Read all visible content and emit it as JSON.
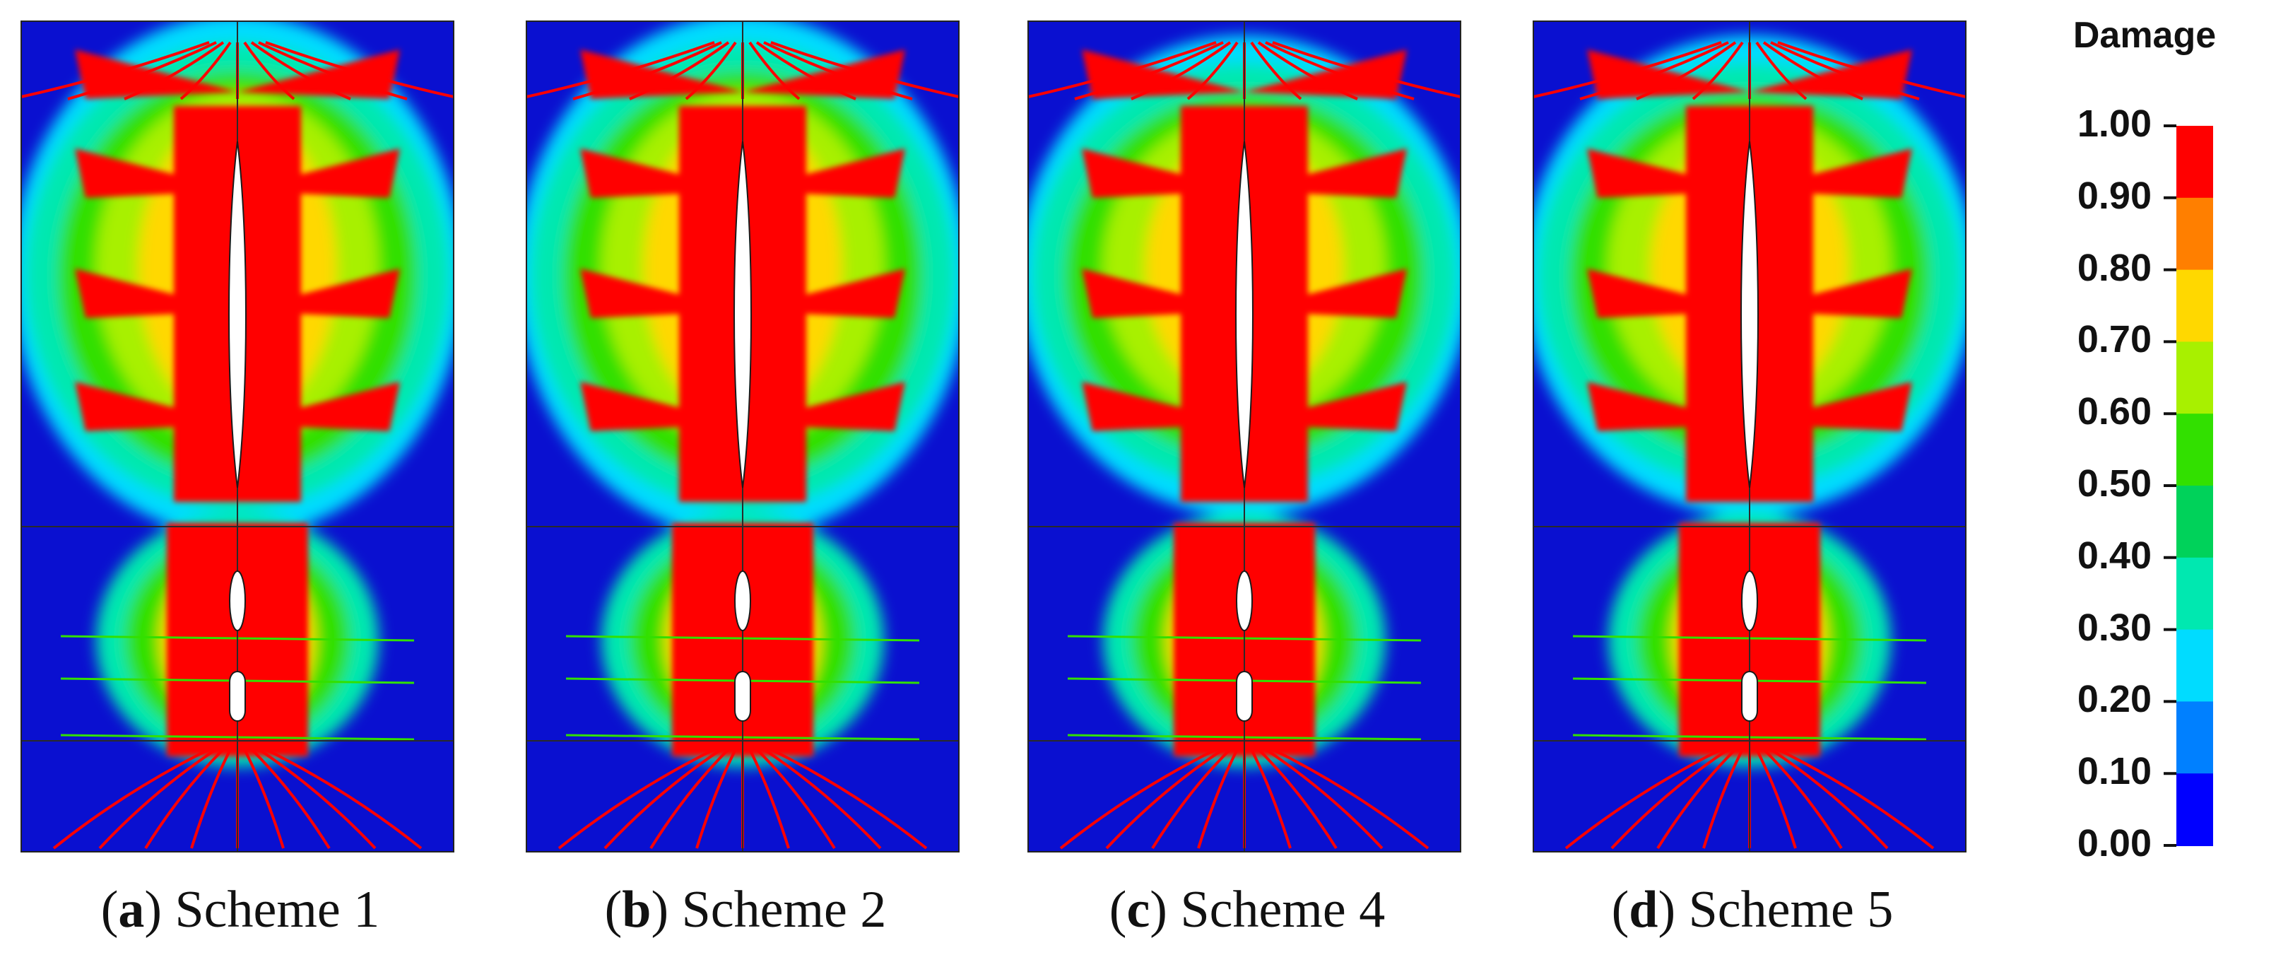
{
  "panels": [
    {
      "letter": "a",
      "scheme": "Scheme 1"
    },
    {
      "letter": "b",
      "scheme": "Scheme 2"
    },
    {
      "letter": "c",
      "scheme": "Scheme 4"
    },
    {
      "letter": "d",
      "scheme": "Scheme 5"
    }
  ],
  "legend": {
    "title": "Damage",
    "ticks": [
      "1.00",
      "0.90",
      "0.80",
      "0.70",
      "0.60",
      "0.50",
      "0.40",
      "0.30",
      "0.20",
      "0.10",
      "0.00"
    ],
    "colors": [
      "#ff0000",
      "#ff7f00",
      "#ffd800",
      "#a8f000",
      "#32e000",
      "#00d25a",
      "#00e8b0",
      "#00dcff",
      "#0080ff",
      "#0000ff"
    ]
  },
  "palette": {
    "background": "#0a10d0",
    "hole": "#ffffff"
  }
}
